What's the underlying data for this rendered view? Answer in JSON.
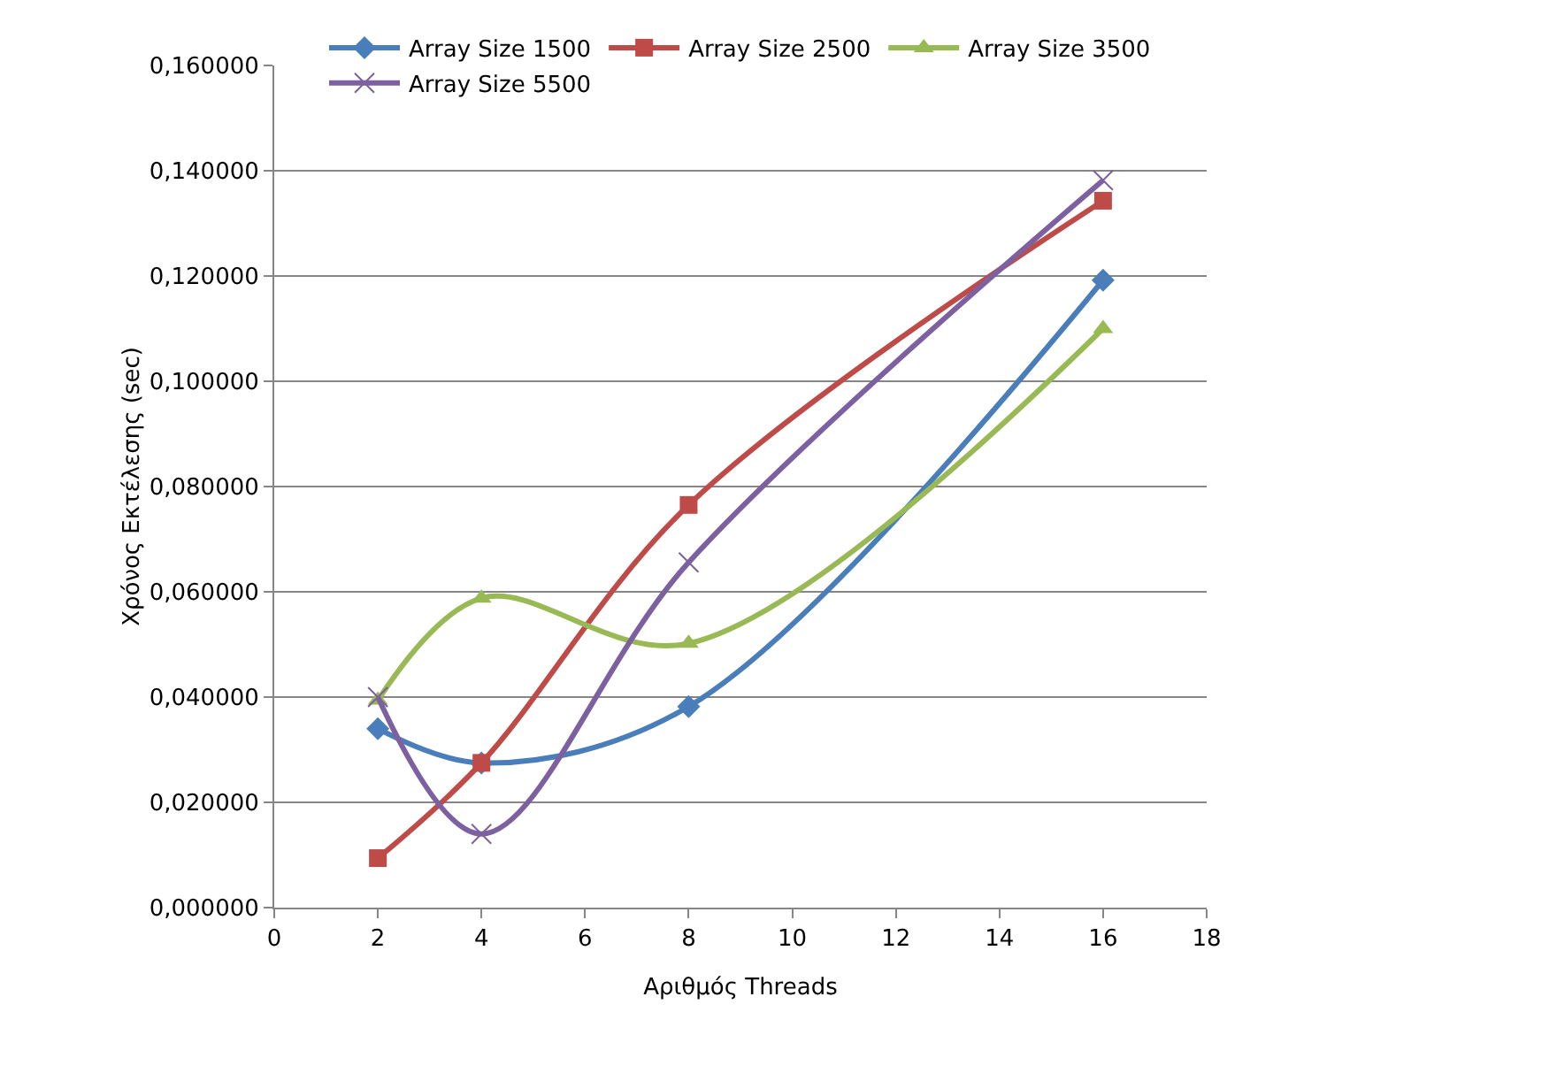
{
  "chart_data": {
    "type": "line",
    "xlabel": "Αριθμός Threads",
    "ylabel": "Χρόνος Εκτέλεσης (sec)",
    "x": [
      2,
      4,
      8,
      16
    ],
    "series": [
      {
        "name": "Array Size 1500",
        "color": "#4a7ebb",
        "marker": "diamond",
        "values": [
          0.034,
          0.0275,
          0.0382,
          0.1192
        ]
      },
      {
        "name": "Array Size 2500",
        "color": "#be4b48",
        "marker": "square",
        "values": [
          0.0094,
          0.0275,
          0.0765,
          0.1343
        ]
      },
      {
        "name": "Array Size 3500",
        "color": "#98b954",
        "marker": "triangle",
        "values": [
          0.0394,
          0.0588,
          0.0502,
          0.11
        ]
      },
      {
        "name": "Array Size 5500",
        "color": "#7d60a0",
        "marker": "cross",
        "values": [
          0.04,
          0.014,
          0.0656,
          0.1382
        ]
      }
    ],
    "xlim": [
      0,
      18
    ],
    "xticks": [
      0,
      2,
      4,
      6,
      8,
      10,
      12,
      14,
      16,
      18
    ],
    "ylim": [
      0,
      0.16
    ],
    "yticks": [
      {
        "value": 0,
        "label": "0,000000"
      },
      {
        "value": 0.02,
        "label": "0,020000"
      },
      {
        "value": 0.04,
        "label": "0,040000"
      },
      {
        "value": 0.06,
        "label": "0,060000"
      },
      {
        "value": 0.08,
        "label": "0,080000"
      },
      {
        "value": 0.1,
        "label": "0,100000"
      },
      {
        "value": 0.12,
        "label": "0,120000"
      },
      {
        "value": 0.14,
        "label": "0,140000"
      },
      {
        "value": 0.16,
        "label": "0,160000"
      }
    ],
    "grid": "y",
    "legend": "top",
    "line_style": "solid"
  }
}
